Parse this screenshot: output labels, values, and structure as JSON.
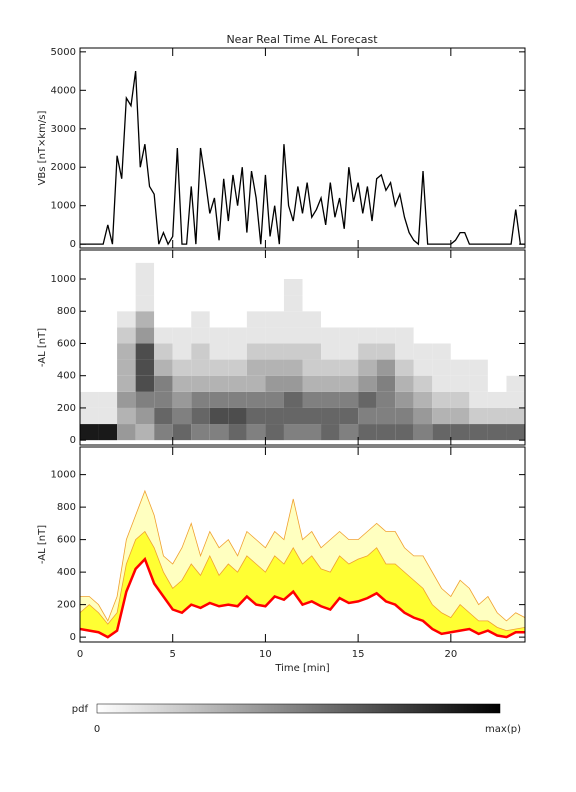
{
  "chart_data": [
    {
      "type": "line",
      "title": "Near Real Time AL Forecast",
      "ylabel": "VBs [nT×km/s]",
      "color": "#000000",
      "xlim": [
        0,
        24
      ],
      "xticks": [
        0,
        5,
        10,
        15,
        20
      ],
      "ylim": [
        -100,
        5100
      ],
      "yticks": [
        0,
        1000,
        2000,
        3000,
        4000,
        5000
      ],
      "x": [
        0,
        0.25,
        0.5,
        0.75,
        1,
        1.25,
        1.5,
        1.75,
        2,
        2.25,
        2.5,
        2.75,
        3,
        3.25,
        3.5,
        3.75,
        4,
        4.25,
        4.5,
        4.75,
        5,
        5.25,
        5.5,
        5.75,
        6,
        6.25,
        6.5,
        6.75,
        7,
        7.25,
        7.5,
        7.75,
        8,
        8.25,
        8.5,
        8.75,
        9,
        9.25,
        9.5,
        9.75,
        10,
        10.25,
        10.5,
        10.75,
        11,
        11.25,
        11.5,
        11.75,
        12,
        12.25,
        12.5,
        12.75,
        13,
        13.25,
        13.5,
        13.75,
        14,
        14.25,
        14.5,
        14.75,
        15,
        15.25,
        15.5,
        15.75,
        16,
        16.25,
        16.5,
        16.75,
        17,
        17.25,
        17.5,
        17.75,
        18,
        18.25,
        18.5,
        18.75,
        19,
        19.25,
        19.5,
        19.75,
        20,
        20.25,
        20.5,
        20.75,
        21,
        21.25,
        21.5,
        21.75,
        22,
        22.25,
        22.5,
        22.75,
        23,
        23.25,
        23.5,
        23.75,
        24
      ],
      "values": [
        0,
        0,
        0,
        0,
        0,
        0,
        500,
        0,
        2300,
        1700,
        3800,
        3600,
        4500,
        2000,
        2600,
        1500,
        1300,
        0,
        300,
        0,
        200,
        2500,
        0,
        0,
        1500,
        0,
        2500,
        1700,
        800,
        1200,
        100,
        1700,
        600,
        1800,
        1000,
        2000,
        300,
        1900,
        1200,
        0,
        1800,
        200,
        1000,
        0,
        2600,
        1000,
        600,
        1500,
        800,
        1600,
        700,
        900,
        1200,
        500,
        1600,
        700,
        1200,
        400,
        2000,
        1100,
        1600,
        800,
        1500,
        600,
        1700,
        1800,
        1400,
        1600,
        1000,
        1300,
        700,
        300,
        100,
        0,
        1900,
        0,
        0,
        0,
        0,
        0,
        0,
        100,
        300,
        300,
        0,
        0,
        0,
        0,
        0,
        0,
        0,
        0,
        0,
        0,
        900,
        0,
        0
      ]
    },
    {
      "type": "heatmap",
      "ylabel": "-AL [nT]",
      "xlim": [
        0,
        24
      ],
      "xticks": [
        0,
        5,
        10,
        15,
        20
      ],
      "ylim": [
        -30,
        1180
      ],
      "yticks": [
        0,
        200,
        400,
        600,
        800,
        1000
      ],
      "x_edges": [
        0,
        1,
        2,
        3,
        4,
        5,
        6,
        7,
        8,
        9,
        10,
        11,
        12,
        13,
        14,
        15,
        16,
        17,
        18,
        19,
        20,
        21,
        22,
        23,
        24
      ],
      "y_edges": [
        0,
        100,
        200,
        300,
        400,
        500,
        600,
        700,
        800,
        900,
        1000,
        1100
      ],
      "z": [
        [
          0.9,
          0.1,
          0.1,
          0,
          0,
          0,
          0,
          0,
          0,
          0,
          0
        ],
        [
          0.9,
          0.1,
          0.1,
          0,
          0,
          0,
          0,
          0,
          0,
          0,
          0
        ],
        [
          0.4,
          0.3,
          0.4,
          0.3,
          0.3,
          0.3,
          0.2,
          0.1,
          0,
          0,
          0
        ],
        [
          0.3,
          0.4,
          0.5,
          0.7,
          0.7,
          0.7,
          0.4,
          0.3,
          0.1,
          0.1,
          0.1
        ],
        [
          0.5,
          0.6,
          0.5,
          0.5,
          0.3,
          0.2,
          0.1,
          0,
          0,
          0,
          0
        ],
        [
          0.6,
          0.5,
          0.4,
          0.3,
          0.2,
          0.1,
          0.1,
          0,
          0,
          0,
          0
        ],
        [
          0.5,
          0.6,
          0.5,
          0.3,
          0.2,
          0.2,
          0.1,
          0.1,
          0,
          0,
          0
        ],
        [
          0.5,
          0.7,
          0.5,
          0.3,
          0.2,
          0.1,
          0.1,
          0,
          0,
          0,
          0
        ],
        [
          0.6,
          0.7,
          0.5,
          0.3,
          0.2,
          0.1,
          0.1,
          0,
          0,
          0,
          0
        ],
        [
          0.5,
          0.6,
          0.5,
          0.3,
          0.3,
          0.2,
          0.1,
          0.1,
          0,
          0,
          0
        ],
        [
          0.6,
          0.6,
          0.5,
          0.4,
          0.3,
          0.2,
          0.1,
          0.1,
          0,
          0,
          0
        ],
        [
          0.5,
          0.6,
          0.6,
          0.4,
          0.3,
          0.2,
          0.1,
          0.1,
          0.1,
          0.1,
          0
        ],
        [
          0.5,
          0.6,
          0.5,
          0.3,
          0.2,
          0.2,
          0.1,
          0.1,
          0,
          0,
          0
        ],
        [
          0.6,
          0.6,
          0.5,
          0.3,
          0.2,
          0.1,
          0.1,
          0,
          0,
          0,
          0
        ],
        [
          0.5,
          0.6,
          0.5,
          0.3,
          0.2,
          0.1,
          0.1,
          0,
          0,
          0,
          0
        ],
        [
          0.6,
          0.5,
          0.6,
          0.4,
          0.3,
          0.2,
          0.1,
          0,
          0,
          0,
          0
        ],
        [
          0.6,
          0.5,
          0.5,
          0.5,
          0.4,
          0.2,
          0.1,
          0,
          0,
          0,
          0
        ],
        [
          0.6,
          0.5,
          0.4,
          0.3,
          0.2,
          0.1,
          0.1,
          0,
          0,
          0,
          0
        ],
        [
          0.5,
          0.4,
          0.3,
          0.2,
          0.1,
          0.1,
          0,
          0,
          0,
          0,
          0
        ],
        [
          0.6,
          0.3,
          0.2,
          0.1,
          0.1,
          0.1,
          0,
          0,
          0,
          0,
          0
        ],
        [
          0.6,
          0.3,
          0.2,
          0.1,
          0.1,
          0,
          0,
          0,
          0,
          0,
          0
        ],
        [
          0.6,
          0.2,
          0.1,
          0.1,
          0.1,
          0,
          0,
          0,
          0,
          0,
          0
        ],
        [
          0.6,
          0.2,
          0.1,
          0,
          0,
          0,
          0,
          0,
          0,
          0,
          0
        ],
        [
          0.6,
          0.2,
          0.1,
          0.1,
          0,
          0,
          0,
          0,
          0,
          0,
          0
        ]
      ],
      "colorbar": {
        "label": "pdf",
        "min_label": "0",
        "max_label": "max(p)"
      }
    },
    {
      "type": "band",
      "ylabel": "-AL [nT]",
      "xlabel": "Time [min]",
      "xlim": [
        0,
        24
      ],
      "xticks": [
        0,
        5,
        10,
        15,
        20
      ],
      "ylim": [
        -30,
        1170
      ],
      "yticks": [
        0,
        200,
        400,
        600,
        800,
        1000
      ],
      "color": "#ff0000",
      "inner_color": "#ffff33",
      "outer_color": "#ffffc0",
      "edge_color": "#f0a030",
      "x": [
        0,
        0.5,
        1,
        1.5,
        2,
        2.5,
        3,
        3.5,
        4,
        4.5,
        5,
        5.5,
        6,
        6.5,
        7,
        7.5,
        8,
        8.5,
        9,
        9.5,
        10,
        10.5,
        11,
        11.5,
        12,
        12.5,
        13,
        13.5,
        14,
        14.5,
        15,
        15.5,
        16,
        16.5,
        17,
        17.5,
        18,
        18.5,
        19,
        19.5,
        20,
        20.5,
        21,
        21.5,
        22,
        22.5,
        23,
        23.5,
        24
      ],
      "values": [
        50,
        40,
        30,
        0,
        40,
        280,
        420,
        480,
        330,
        250,
        170,
        150,
        200,
        180,
        210,
        190,
        200,
        190,
        250,
        200,
        190,
        250,
        230,
        280,
        200,
        220,
        190,
        170,
        240,
        210,
        220,
        240,
        270,
        220,
        200,
        150,
        120,
        100,
        50,
        20,
        30,
        40,
        50,
        20,
        40,
        10,
        0,
        30,
        30
      ],
      "upper": [
        150,
        200,
        150,
        80,
        150,
        450,
        600,
        650,
        550,
        400,
        300,
        350,
        450,
        380,
        500,
        380,
        450,
        400,
        500,
        450,
        400,
        500,
        450,
        550,
        450,
        500,
        420,
        400,
        500,
        450,
        480,
        500,
        550,
        450,
        450,
        400,
        350,
        300,
        200,
        150,
        120,
        200,
        150,
        100,
        100,
        60,
        40,
        50,
        60
      ],
      "outer": [
        250,
        250,
        200,
        100,
        250,
        600,
        750,
        900,
        750,
        500,
        450,
        550,
        700,
        500,
        650,
        550,
        600,
        500,
        650,
        600,
        550,
        650,
        600,
        850,
        600,
        650,
        550,
        600,
        650,
        600,
        600,
        650,
        700,
        650,
        650,
        550,
        500,
        500,
        400,
        300,
        250,
        350,
        300,
        200,
        250,
        150,
        100,
        150,
        120
      ]
    }
  ]
}
